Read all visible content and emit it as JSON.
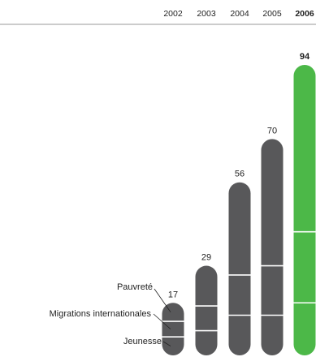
{
  "chart_data": {
    "type": "bar",
    "title": "",
    "xlabel": "",
    "ylabel": "",
    "categories": [
      "2002",
      "2003",
      "2004",
      "2005",
      "2006"
    ],
    "highlight_category": "2006",
    "values": [
      17,
      29,
      56,
      70,
      94
    ],
    "segments": [
      "Jeunesse",
      "Migrations internationales",
      "Pauvreté"
    ],
    "segment_values": [
      [
        6,
        5,
        6
      ],
      [
        8,
        8,
        13
      ],
      [
        13,
        13,
        30
      ],
      [
        13,
        16,
        41
      ],
      [
        17,
        23,
        54
      ]
    ],
    "annotated_category": "2002",
    "ylim": [
      0,
      94
    ],
    "grid": false,
    "legend": "none",
    "colors": {
      "bar": "#58585a",
      "highlight": "#4cb848",
      "divider": "#ffffff",
      "axis_line": "#999999",
      "text": "#222222"
    }
  }
}
